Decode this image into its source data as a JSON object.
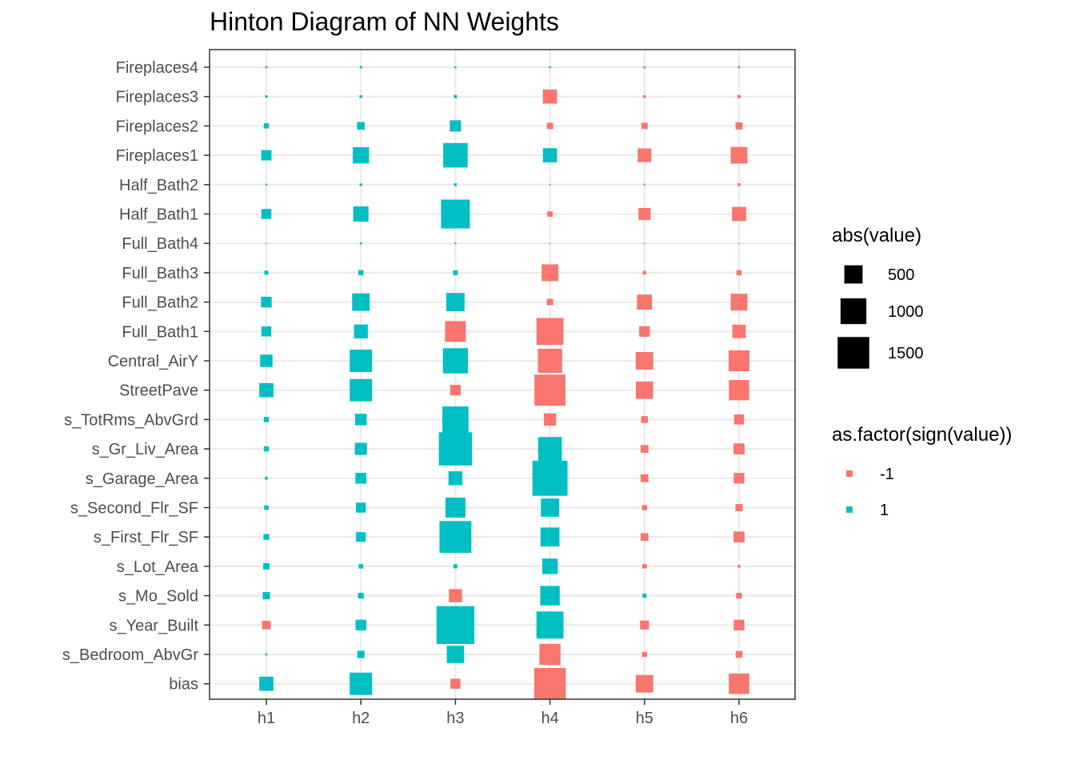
{
  "chart_data": {
    "type": "hinton",
    "title": "Hinton Diagram of NN Weights",
    "x_categories": [
      "h1",
      "h2",
      "h3",
      "h4",
      "h5",
      "h6"
    ],
    "y_categories": [
      "Fireplaces4",
      "Fireplaces3",
      "Fireplaces2",
      "Fireplaces1",
      "Half_Bath2",
      "Half_Bath1",
      "Full_Bath4",
      "Full_Bath3",
      "Full_Bath2",
      "Full_Bath1",
      "Central_AirY",
      "StreetPave",
      "s_TotRms_AbvGrd",
      "s_Gr_Liv_Area",
      "s_Garage_Area",
      "s_Second_Flr_SF",
      "s_First_Flr_SF",
      "s_Lot_Area",
      "s_Mo_Sold",
      "s_Year_Built",
      "s_Bedroom_AbvGr",
      "bias"
    ],
    "values": [
      [
        -8,
        8,
        6,
        5,
        -8,
        -8
      ],
      [
        10,
        12,
        15,
        -300,
        -12,
        -15
      ],
      [
        40,
        90,
        190,
        -60,
        -60,
        -75
      ],
      [
        160,
        400,
        900,
        300,
        -280,
        -420
      ],
      [
        5,
        10,
        12,
        3,
        -6,
        -12
      ],
      [
        150,
        350,
        1250,
        -45,
        -220,
        -300
      ],
      [
        2,
        6,
        4,
        2,
        -2,
        -2
      ],
      [
        25,
        40,
        35,
        -420,
        -20,
        -40
      ],
      [
        170,
        460,
        500,
        -60,
        -340,
        -420
      ],
      [
        150,
        290,
        -650,
        -1100,
        -170,
        -270
      ],
      [
        230,
        750,
        950,
        -880,
        -460,
        -650
      ],
      [
        300,
        750,
        -170,
        -1450,
        -450,
        -620
      ],
      [
        40,
        200,
        1030,
        -230,
        -70,
        -150
      ],
      [
        40,
        220,
        1650,
        850,
        -90,
        -180
      ],
      [
        12,
        180,
        290,
        1850,
        -90,
        -170
      ],
      [
        30,
        150,
        600,
        500,
        -40,
        -80
      ],
      [
        50,
        140,
        1530,
        540,
        -90,
        -180
      ],
      [
        60,
        30,
        25,
        360,
        -30,
        -12
      ],
      [
        80,
        50,
        -260,
        570,
        25,
        -50
      ],
      [
        -110,
        170,
        2150,
        1100,
        -120,
        -170
      ],
      [
        6,
        80,
        450,
        -670,
        -40,
        -70
      ],
      [
        300,
        750,
        -150,
        -1500,
        -460,
        -630
      ]
    ],
    "legends": {
      "size": {
        "title": "abs(value)",
        "breaks": [
          500,
          1000,
          1500
        ],
        "labels": [
          "500",
          "1000",
          "1500"
        ]
      },
      "color": {
        "title": "as.factor(sign(value))",
        "levels": [
          "-1",
          "1"
        ],
        "colors": [
          "#F8766D",
          "#00BFC4"
        ]
      }
    },
    "grid": true,
    "legend_position": "right"
  }
}
